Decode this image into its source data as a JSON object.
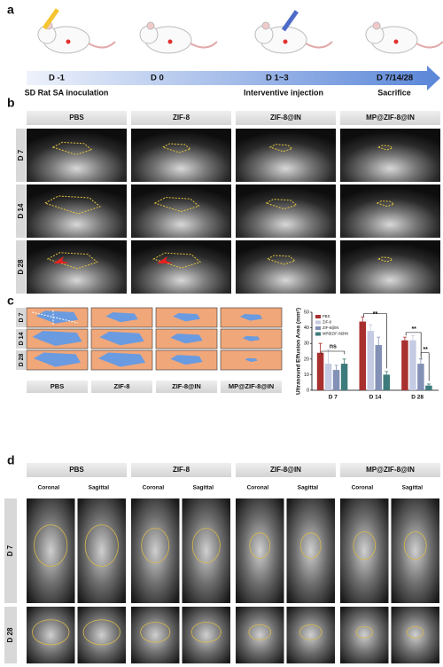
{
  "panel_labels": [
    "a",
    "b",
    "c",
    "d"
  ],
  "timeline": {
    "days": [
      "D -1",
      "D 0",
      "D 1~3",
      "D 7/14/28"
    ],
    "events": [
      "SD Rat SA inoculation",
      "Interventive injection",
      "Sacrifice"
    ]
  },
  "groups": [
    "PBS",
    "ZIF-8",
    "ZIF-8@IN",
    "MP@ZIF-8@IN"
  ],
  "ultrasound_rows": [
    "D 7",
    "D 14",
    "D 28"
  ],
  "chart_data": {
    "type": "bar",
    "y_label": "Ultrasound Effusion Area (mm²)",
    "categories": [
      "D 7",
      "D 14",
      "D 28"
    ],
    "series": [
      {
        "name": "PBS",
        "color": "#a8302f",
        "values": [
          24,
          44,
          32
        ],
        "errors": [
          6,
          3,
          2
        ]
      },
      {
        "name": "ZIF-8",
        "color": "#c5cbe3",
        "values": [
          17,
          38,
          32
        ],
        "errors": [
          9,
          4,
          3
        ]
      },
      {
        "name": "ZIF-8@IN",
        "color": "#8391b6",
        "values": [
          13,
          29,
          17
        ],
        "errors": [
          3,
          5,
          3
        ]
      },
      {
        "name": "MP@ZIF-8@IN",
        "color": "#3e7b7c",
        "values": [
          17,
          10,
          3
        ],
        "errors": [
          3,
          2,
          1
        ]
      }
    ],
    "ylim": [
      0,
      50
    ],
    "yticks": [
      0,
      10,
      20,
      30,
      40,
      50
    ],
    "annotations": [
      "ns",
      "**",
      "**",
      "**"
    ]
  },
  "mri": {
    "views": [
      "Coronal",
      "Sagittal"
    ],
    "rows": [
      "D 7",
      "D 28"
    ]
  }
}
